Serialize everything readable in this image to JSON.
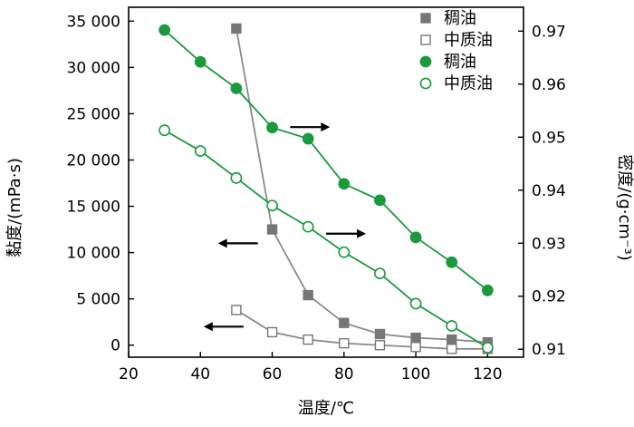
{
  "chart_data": {
    "type": "line",
    "xlabel": "温度/℃",
    "ylabel_left": "黏度/(mPa·s)",
    "ylabel_right": "密度/(g·cm⁻³)",
    "xlim": [
      20,
      130
    ],
    "ylim_left": [
      -1300,
      36500
    ],
    "ylim_right": [
      0.9085,
      0.9745
    ],
    "x_ticks": [
      20,
      40,
      60,
      80,
      100,
      120
    ],
    "x_tick_labels": [
      "20",
      "40",
      "60",
      "80",
      "100",
      "120"
    ],
    "y_left_ticks": [
      0,
      5000,
      10000,
      15000,
      20000,
      25000,
      30000,
      35000
    ],
    "y_left_tick_labels": [
      "0",
      "5 000",
      "10 000",
      "15 000",
      "20 000",
      "25 000",
      "30 000",
      "35 000"
    ],
    "y_right_ticks": [
      0.91,
      0.92,
      0.93,
      0.94,
      0.95,
      0.96,
      0.97
    ],
    "y_right_tick_labels": [
      "0.91",
      "0.92",
      "0.93",
      "0.94",
      "0.95",
      "0.96",
      "0.97"
    ],
    "grid": false,
    "legend_position": "top-right",
    "series": [
      {
        "name": "稠油",
        "axis": "left",
        "marker": "filled-square",
        "color": "#777777",
        "line_color": "#8a8a8a",
        "x": [
          50,
          60,
          70,
          80,
          90,
          100,
          110,
          120
        ],
        "y": [
          34200,
          12500,
          5400,
          2400,
          1200,
          800,
          600,
          300
        ]
      },
      {
        "name": "中质油",
        "axis": "left",
        "marker": "open-square",
        "color": "#777777",
        "line_color": "#8a8a8a",
        "x": [
          50,
          60,
          70,
          80,
          90,
          100,
          110,
          120
        ],
        "y": [
          3800,
          1400,
          600,
          200,
          0,
          -200,
          -400,
          -400
        ]
      },
      {
        "name": "稠油",
        "axis": "right",
        "marker": "filled-circle",
        "color": "#1a9a3c",
        "line_color": "#1a9a3c",
        "x": [
          30,
          40,
          50,
          60,
          70,
          80,
          90,
          100,
          110,
          120
        ],
        "y": [
          0.9702,
          0.9642,
          0.9592,
          0.9518,
          0.9497,
          0.9412,
          0.9381,
          0.9311,
          0.9264,
          0.9211
        ]
      },
      {
        "name": "中质油",
        "axis": "right",
        "marker": "open-circle",
        "color": "#1a9a3c",
        "line_color": "#1a9a3c",
        "x": [
          30,
          40,
          50,
          60,
          70,
          80,
          90,
          100,
          110,
          120
        ],
        "y": [
          0.9513,
          0.9474,
          0.9423,
          0.9371,
          0.9331,
          0.9283,
          0.9243,
          0.9186,
          0.9144,
          0.9103
        ]
      }
    ],
    "arrows": [
      {
        "direction": "right",
        "x": 65,
        "axis": "right",
        "y": 0.9519
      },
      {
        "direction": "right",
        "x": 75,
        "axis": "right",
        "y": 0.9318
      },
      {
        "direction": "left",
        "x": 56,
        "axis": "left",
        "y": 11000
      },
      {
        "direction": "left",
        "x": 52,
        "axis": "left",
        "y": 2000
      }
    ]
  }
}
